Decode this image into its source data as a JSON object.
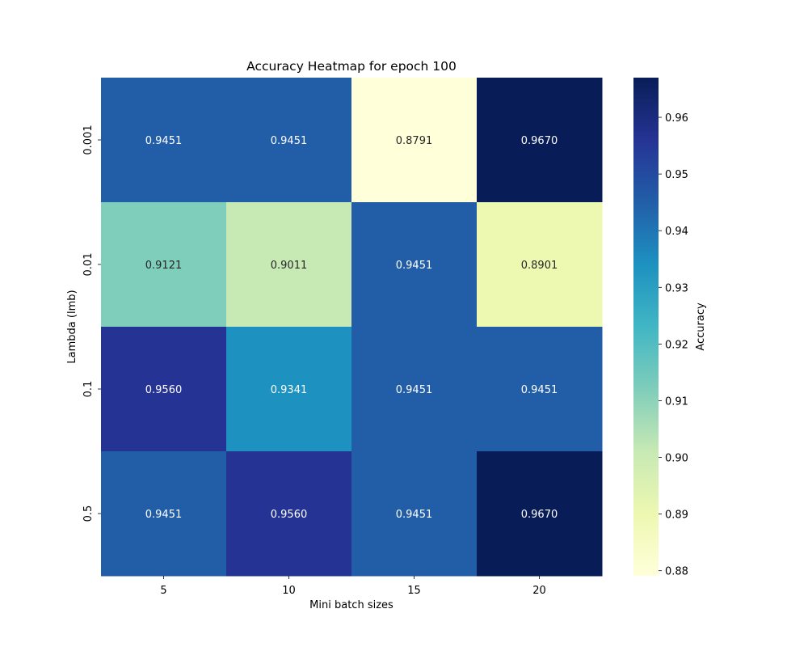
{
  "chart_data": {
    "type": "heatmap",
    "title": "Accuracy Heatmap for epoch 100",
    "xlabel": "Mini batch sizes",
    "ylabel": "Lambda (lmb)",
    "x_categories": [
      "5",
      "10",
      "15",
      "20"
    ],
    "y_categories": [
      "0.001",
      "0.01",
      "0.1",
      "0.5"
    ],
    "values": [
      [
        0.9451,
        0.9451,
        0.8791,
        0.967
      ],
      [
        0.9121,
        0.9011,
        0.9451,
        0.8901
      ],
      [
        0.956,
        0.9341,
        0.9451,
        0.9451
      ],
      [
        0.9451,
        0.956,
        0.9451,
        0.967
      ]
    ],
    "value_format": "0.0000",
    "colormap": "YlGnBu",
    "colorbar": {
      "label": "Accuracy",
      "range": [
        0.8791,
        0.967
      ],
      "ticks": [
        0.88,
        0.89,
        0.9,
        0.91,
        0.92,
        0.93,
        0.94,
        0.95,
        0.96
      ],
      "tick_labels": [
        "0.88",
        "0.89",
        "0.90",
        "0.91",
        "0.92",
        "0.93",
        "0.94",
        "0.95",
        "0.96"
      ]
    },
    "colormap_stops": [
      "#ffffd9",
      "#edf8b1",
      "#c7e9b4",
      "#7fcdbb",
      "#41b6c4",
      "#1d91c0",
      "#225ea8",
      "#253494",
      "#081d58"
    ]
  }
}
